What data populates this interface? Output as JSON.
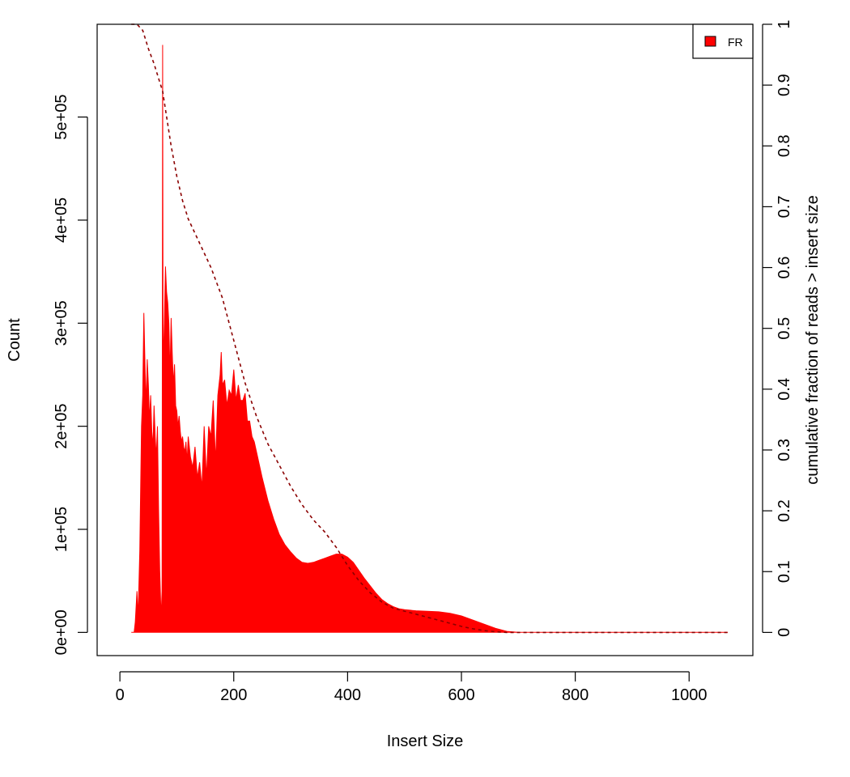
{
  "chart_data": {
    "type": "area",
    "xlabel": "Insert Size",
    "ylabel": "Count",
    "y2label": "cumulative fraction of reads > insert size",
    "xlim": [
      -40,
      1112
    ],
    "ylim": [
      -22500,
      590000
    ],
    "y2lim": [
      -0.0381,
      1.0
    ],
    "x_ticks": [
      0,
      200,
      400,
      600,
      800,
      1000
    ],
    "x_tick_labels": [
      "0",
      "200",
      "400",
      "600",
      "800",
      "1000"
    ],
    "y_ticks": [
      0,
      100000,
      200000,
      300000,
      400000,
      500000
    ],
    "y_tick_labels": [
      "0e+00",
      "1e+05",
      "2e+05",
      "3e+05",
      "4e+05",
      "5e+05"
    ],
    "y2_ticks": [
      0,
      0.1,
      0.2,
      0.3,
      0.4,
      0.5,
      0.6,
      0.7,
      0.8,
      0.9,
      1
    ],
    "y2_tick_labels": [
      "0",
      "0.1",
      "0.2",
      "0.3",
      "0.4",
      "0.5",
      "0.6",
      "0.7",
      "0.8",
      "0.9",
      "1"
    ],
    "legend": {
      "position": "top-right",
      "entries": [
        {
          "label": "FR",
          "color": "#ff0000"
        }
      ]
    },
    "series": [
      {
        "name": "FR",
        "color": "#ff0000",
        "axis": "left",
        "x": [
          20,
          25,
          27,
          30,
          32,
          35,
          38,
          40,
          42,
          44,
          46,
          48,
          50,
          52,
          54,
          56,
          58,
          60,
          62,
          64,
          66,
          68,
          70,
          72,
          73,
          74,
          75,
          76,
          77,
          78,
          80,
          82,
          84,
          86,
          88,
          90,
          92,
          94,
          96,
          98,
          100,
          102,
          104,
          106,
          108,
          110,
          112,
          114,
          116,
          118,
          120,
          124,
          128,
          132,
          136,
          140,
          144,
          148,
          152,
          156,
          160,
          164,
          168,
          172,
          176,
          178,
          180,
          184,
          188,
          192,
          196,
          200,
          204,
          208,
          212,
          216,
          220,
          224,
          228,
          232,
          236,
          240,
          250,
          260,
          270,
          280,
          290,
          300,
          310,
          320,
          330,
          340,
          350,
          360,
          370,
          380,
          390,
          400,
          410,
          420,
          430,
          440,
          450,
          460,
          470,
          480,
          490,
          500,
          520,
          540,
          560,
          580,
          600,
          620,
          640,
          660,
          680,
          700,
          750,
          800,
          850,
          900,
          950,
          1000,
          1050,
          1068
        ],
        "values": [
          0,
          0,
          10000,
          40000,
          15000,
          80000,
          200000,
          230000,
          310000,
          260000,
          220000,
          265000,
          240000,
          205000,
          230000,
          195000,
          180000,
          220000,
          190000,
          170000,
          200000,
          120000,
          60000,
          20000,
          25000,
          40000,
          570000,
          180000,
          280000,
          300000,
          355000,
          330000,
          320000,
          300000,
          250000,
          305000,
          270000,
          240000,
          260000,
          220000,
          215000,
          200000,
          210000,
          195000,
          185000,
          190000,
          180000,
          175000,
          185000,
          165000,
          190000,
          170000,
          160000,
          180000,
          150000,
          165000,
          140000,
          200000,
          150000,
          200000,
          190000,
          225000,
          165000,
          230000,
          250000,
          272000,
          240000,
          245000,
          220000,
          235000,
          230000,
          255000,
          225000,
          240000,
          225000,
          225000,
          232000,
          205000,
          205000,
          190000,
          185000,
          175000,
          150000,
          128000,
          110000,
          95000,
          85000,
          78000,
          72000,
          68000,
          67000,
          68000,
          70000,
          72000,
          74000,
          76000,
          76000,
          73000,
          68000,
          60000,
          52000,
          45000,
          38000,
          32000,
          28000,
          25000,
          23000,
          22000,
          21000,
          20500,
          20000,
          18500,
          16000,
          12000,
          8000,
          4000,
          1000,
          0,
          0,
          0,
          0,
          0,
          0,
          0,
          0,
          0
        ]
      },
      {
        "name": "cumulative fraction of reads > insert size",
        "color": "#8b0000",
        "axis": "right",
        "style": "dashed",
        "x": [
          20,
          30,
          40,
          45,
          50,
          60,
          70,
          75,
          80,
          90,
          100,
          110,
          120,
          140,
          160,
          180,
          200,
          220,
          240,
          260,
          280,
          300,
          320,
          340,
          360,
          380,
          400,
          420,
          440,
          460,
          480,
          500,
          520,
          540,
          560,
          580,
          600,
          620,
          640,
          660,
          680,
          700,
          750,
          800,
          900,
          1000,
          1068
        ],
        "values": [
          1.0,
          1.0,
          0.99,
          0.975,
          0.96,
          0.935,
          0.905,
          0.89,
          0.86,
          0.8,
          0.75,
          0.71,
          0.68,
          0.64,
          0.6,
          0.55,
          0.48,
          0.41,
          0.355,
          0.31,
          0.275,
          0.24,
          0.21,
          0.185,
          0.165,
          0.14,
          0.11,
          0.085,
          0.065,
          0.05,
          0.04,
          0.035,
          0.03,
          0.025,
          0.02,
          0.015,
          0.01,
          0.006,
          0.003,
          0.001,
          0.0,
          0.0,
          0.0,
          0.0,
          0.0,
          0.0,
          0.0
        ]
      }
    ]
  }
}
